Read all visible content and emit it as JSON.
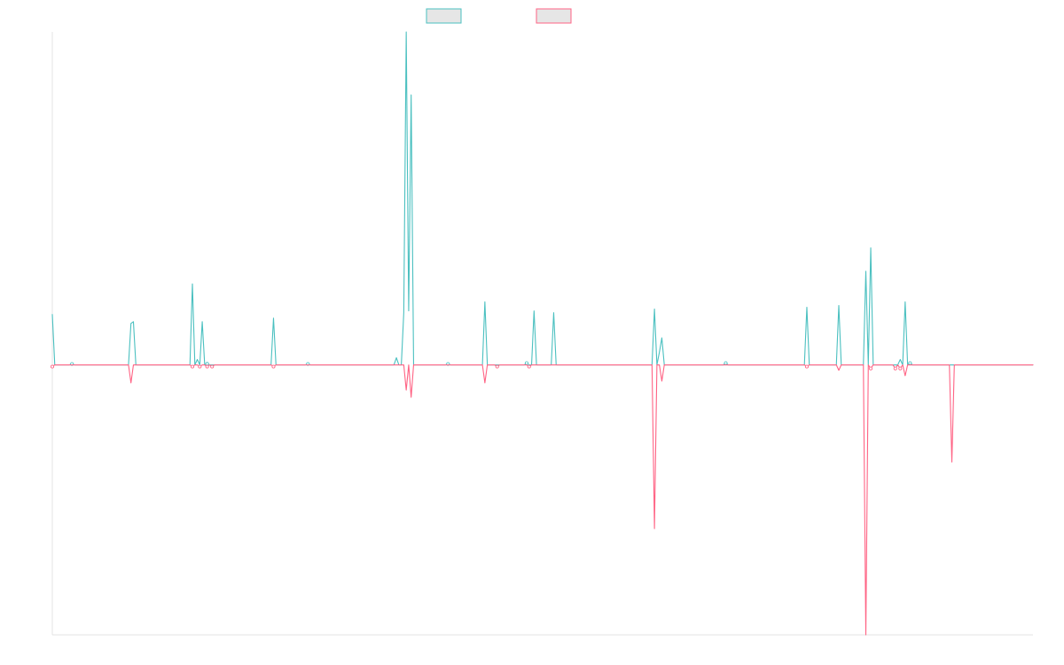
{
  "chart_data": {
    "type": "line",
    "title": "",
    "xlabel": "",
    "ylabel": "",
    "x_count": 400,
    "ylim": [
      -150,
      185
    ],
    "grid": false,
    "legend": "top-center",
    "series": [
      {
        "color": "#4bc0c0",
        "spikes": [
          [
            0,
            28
          ],
          [
            8,
            0.5
          ],
          [
            32,
            23
          ],
          [
            33,
            24
          ],
          [
            57,
            45
          ],
          [
            59,
            3
          ],
          [
            61,
            24
          ],
          [
            63,
            0.6
          ],
          [
            90,
            26
          ],
          [
            104,
            0.5
          ],
          [
            140,
            4
          ],
          [
            143,
            29
          ],
          [
            144,
            185
          ],
          [
            145,
            30
          ],
          [
            146,
            150
          ],
          [
            161,
            0.5
          ],
          [
            176,
            35
          ],
          [
            193,
            1
          ],
          [
            196,
            30
          ],
          [
            204,
            29
          ],
          [
            245,
            31
          ],
          [
            247,
            7
          ],
          [
            248,
            15
          ],
          [
            274,
            1
          ],
          [
            307,
            32
          ],
          [
            320,
            33
          ],
          [
            331,
            52
          ],
          [
            333,
            65
          ],
          [
            345,
            3
          ],
          [
            347,
            35
          ],
          [
            349,
            1
          ]
        ]
      },
      {
        "color": "#ff6384",
        "spikes": [
          [
            0,
            -1
          ],
          [
            32,
            -10
          ],
          [
            57,
            -1
          ],
          [
            60,
            -1
          ],
          [
            63,
            -1
          ],
          [
            65,
            -1
          ],
          [
            90,
            -1
          ],
          [
            144,
            -14
          ],
          [
            146,
            -18
          ],
          [
            176,
            -10
          ],
          [
            181,
            -1
          ],
          [
            194,
            -1
          ],
          [
            245,
            -91
          ],
          [
            248,
            -9
          ],
          [
            307,
            -1
          ],
          [
            320,
            -3
          ],
          [
            331,
            -150
          ],
          [
            333,
            -2
          ],
          [
            343,
            -2
          ],
          [
            345,
            -2
          ],
          [
            347,
            -6
          ],
          [
            366,
            -54
          ]
        ]
      }
    ]
  }
}
